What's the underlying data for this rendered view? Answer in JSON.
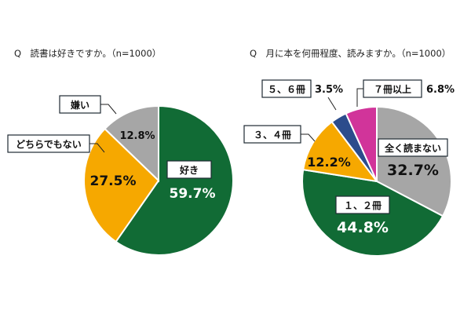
{
  "chart_data": [
    {
      "type": "pie",
      "title": "Q　読書は好きですか。（n=1000）",
      "unit": "%",
      "slices": [
        {
          "label": "好き",
          "value": 59.7,
          "value_label": "59.7%",
          "color": "#116b35"
        },
        {
          "label": "どちらでもない",
          "value": 27.5,
          "value_label": "27.5%",
          "color": "#f6a800"
        },
        {
          "label": "嫌い",
          "value": 12.8,
          "value_label": "12.8%",
          "color": "#a6a6a6"
        }
      ]
    },
    {
      "type": "pie",
      "title": "Q　月に本を何冊程度、読みますか。（n=1000）",
      "unit": "%",
      "slices": [
        {
          "label": "全く読まない",
          "value": 32.7,
          "value_label": "32.7%",
          "color": "#a6a6a6"
        },
        {
          "label": "１、２冊",
          "value": 44.8,
          "value_label": "44.8%",
          "color": "#116b35"
        },
        {
          "label": "３、４冊",
          "value": 12.2,
          "value_label": "12.2%",
          "color": "#f6a800"
        },
        {
          "label": "５、６冊",
          "value": 3.5,
          "value_label": "3.5%",
          "color": "#2c4c8c"
        },
        {
          "label": "７冊以上",
          "value": 6.8,
          "value_label": "6.8%",
          "color": "#d1349a"
        }
      ]
    }
  ]
}
